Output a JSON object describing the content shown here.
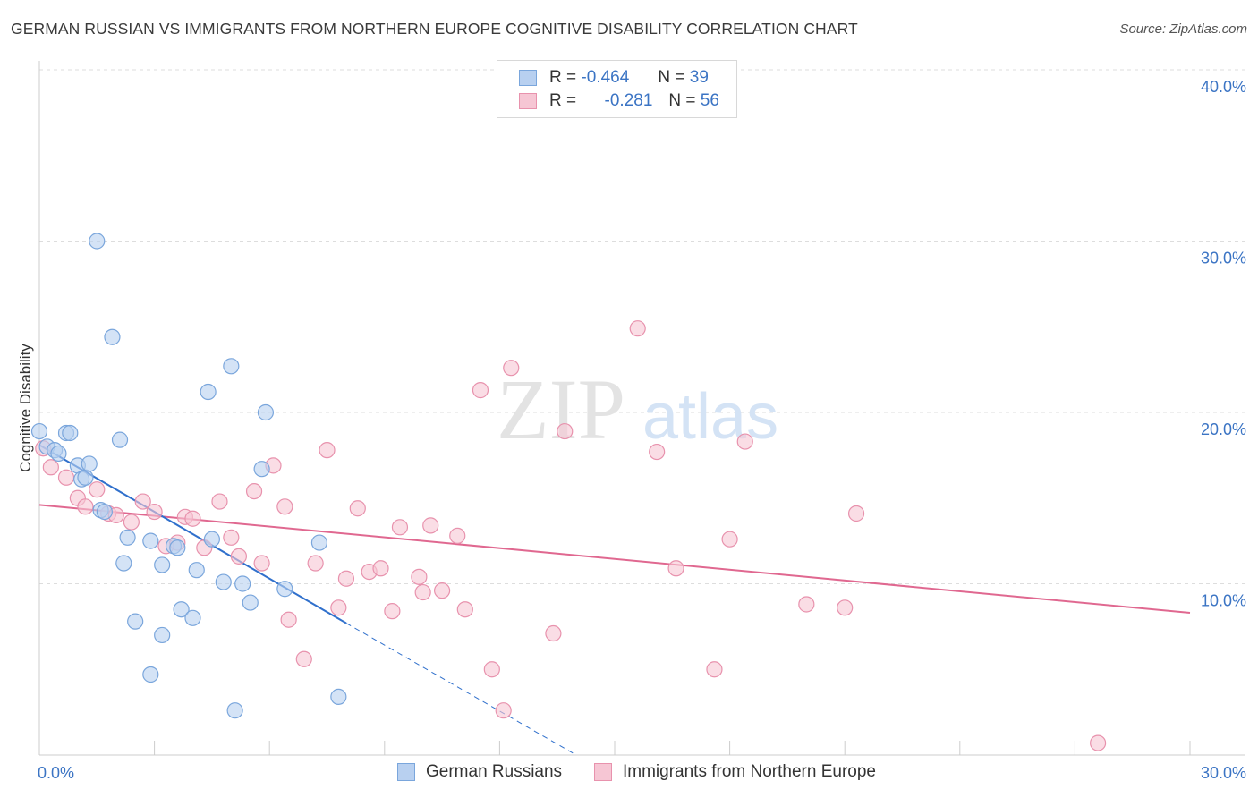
{
  "title": "GERMAN RUSSIAN VS IMMIGRANTS FROM NORTHERN EUROPE COGNITIVE DISABILITY CORRELATION CHART",
  "source": "Source: ZipAtlas.com",
  "watermark": {
    "zip": "ZIP",
    "atlas": "atlas"
  },
  "legend_top": {
    "r_label": "R =",
    "n_label": "N =",
    "series": [
      {
        "r": "-0.464",
        "n": "39"
      },
      {
        "r": "-0.281",
        "n": "56"
      }
    ]
  },
  "colors": {
    "blue_fill": "#b8d0f0",
    "blue_stroke": "#7aa6dc",
    "blue_line": "#3070cc",
    "pink_fill": "#f6c6d4",
    "pink_stroke": "#e892ad",
    "pink_line": "#e06890",
    "axis_label": "#3b74c4",
    "grid": "#dddddd"
  },
  "chart_data": {
    "type": "scatter",
    "title": "GERMAN RUSSIAN VS IMMIGRANTS FROM NORTHERN EUROPE COGNITIVE DISABILITY CORRELATION CHART",
    "xlabel": "",
    "ylabel": "Cognitive Disability",
    "xlim": [
      0,
      30
    ],
    "ylim": [
      0,
      40
    ],
    "x_tick_labels": [
      "0.0%",
      "30.0%"
    ],
    "y_tick_labels": [
      "10.0%",
      "20.0%",
      "30.0%",
      "40.0%"
    ],
    "y_ticks": [
      10,
      20,
      30,
      40
    ],
    "x_ticks_minor": [
      0,
      3,
      6,
      9,
      12,
      15,
      18,
      21,
      24,
      27,
      30
    ],
    "grid": true,
    "legend": "bottom",
    "series": [
      {
        "name": "German Russians",
        "color": "blue",
        "trend": {
          "x0": 0,
          "y0": 18.1,
          "x1": 8,
          "y1": 7.7,
          "dash_x_end": 14,
          "dash_y_end": 0
        },
        "points": [
          [
            0.0,
            18.9
          ],
          [
            0.2,
            18.0
          ],
          [
            0.4,
            17.8
          ],
          [
            0.5,
            17.6
          ],
          [
            0.7,
            18.8
          ],
          [
            0.8,
            18.8
          ],
          [
            1.0,
            16.9
          ],
          [
            1.1,
            16.1
          ],
          [
            1.2,
            16.2
          ],
          [
            1.3,
            17.0
          ],
          [
            1.5,
            30.0
          ],
          [
            1.6,
            14.3
          ],
          [
            1.7,
            14.2
          ],
          [
            1.9,
            24.4
          ],
          [
            2.1,
            18.4
          ],
          [
            2.2,
            11.2
          ],
          [
            2.3,
            12.7
          ],
          [
            2.5,
            7.8
          ],
          [
            2.9,
            12.5
          ],
          [
            2.9,
            4.7
          ],
          [
            3.2,
            11.1
          ],
          [
            3.2,
            7.0
          ],
          [
            3.5,
            12.2
          ],
          [
            3.6,
            12.1
          ],
          [
            3.7,
            8.5
          ],
          [
            4.0,
            8.0
          ],
          [
            4.1,
            10.8
          ],
          [
            4.4,
            21.2
          ],
          [
            4.5,
            12.6
          ],
          [
            4.8,
            10.1
          ],
          [
            5.0,
            22.7
          ],
          [
            5.1,
            2.6
          ],
          [
            5.3,
            10.0
          ],
          [
            5.5,
            8.9
          ],
          [
            5.8,
            16.7
          ],
          [
            5.9,
            20.0
          ],
          [
            6.4,
            9.7
          ],
          [
            7.3,
            12.4
          ],
          [
            7.8,
            3.4
          ]
        ]
      },
      {
        "name": "Immigrants from Northern Europe",
        "color": "pink",
        "trend": {
          "x0": 0,
          "y0": 14.6,
          "x1": 30,
          "y1": 8.3
        },
        "points": [
          [
            0.1,
            17.9
          ],
          [
            0.3,
            16.8
          ],
          [
            0.7,
            16.2
          ],
          [
            1.0,
            15.0
          ],
          [
            1.2,
            14.5
          ],
          [
            1.5,
            15.5
          ],
          [
            1.8,
            14.1
          ],
          [
            2.0,
            14.0
          ],
          [
            2.4,
            13.6
          ],
          [
            2.7,
            14.8
          ],
          [
            3.0,
            14.2
          ],
          [
            3.3,
            12.2
          ],
          [
            3.6,
            12.4
          ],
          [
            3.8,
            13.9
          ],
          [
            4.0,
            13.8
          ],
          [
            4.3,
            12.1
          ],
          [
            4.7,
            14.8
          ],
          [
            5.0,
            12.7
          ],
          [
            5.2,
            11.6
          ],
          [
            5.6,
            15.4
          ],
          [
            5.8,
            11.2
          ],
          [
            6.1,
            16.9
          ],
          [
            6.4,
            14.5
          ],
          [
            6.5,
            7.9
          ],
          [
            6.9,
            5.6
          ],
          [
            7.2,
            11.2
          ],
          [
            7.5,
            17.8
          ],
          [
            7.8,
            8.6
          ],
          [
            8.0,
            10.3
          ],
          [
            8.3,
            14.4
          ],
          [
            8.6,
            10.7
          ],
          [
            8.9,
            10.9
          ],
          [
            9.2,
            8.4
          ],
          [
            9.4,
            13.3
          ],
          [
            9.9,
            10.4
          ],
          [
            10.0,
            9.5
          ],
          [
            10.2,
            13.4
          ],
          [
            10.5,
            9.6
          ],
          [
            10.9,
            12.8
          ],
          [
            11.1,
            8.5
          ],
          [
            11.5,
            21.3
          ],
          [
            11.8,
            5.0
          ],
          [
            12.1,
            2.6
          ],
          [
            12.3,
            22.6
          ],
          [
            13.4,
            7.1
          ],
          [
            13.7,
            18.9
          ],
          [
            15.6,
            24.9
          ],
          [
            16.1,
            17.7
          ],
          [
            16.6,
            10.9
          ],
          [
            17.6,
            5.0
          ],
          [
            18.0,
            12.6
          ],
          [
            18.4,
            18.3
          ],
          [
            20.0,
            8.8
          ],
          [
            21.0,
            8.6
          ],
          [
            21.3,
            14.1
          ],
          [
            27.6,
            0.7
          ]
        ]
      }
    ]
  }
}
